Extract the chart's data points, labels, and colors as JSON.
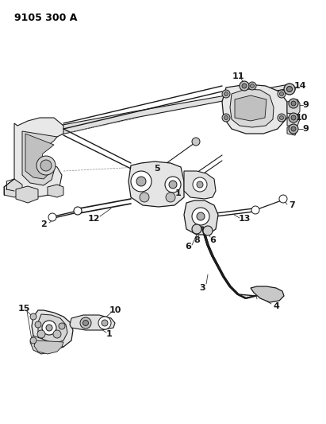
{
  "title": "9105 300 A",
  "bg": "#ffffff",
  "lc": "#1a1a1a",
  "title_fs": 9,
  "label_fs": 8,
  "figsize": [
    4.11,
    5.33
  ],
  "dpi": 100
}
